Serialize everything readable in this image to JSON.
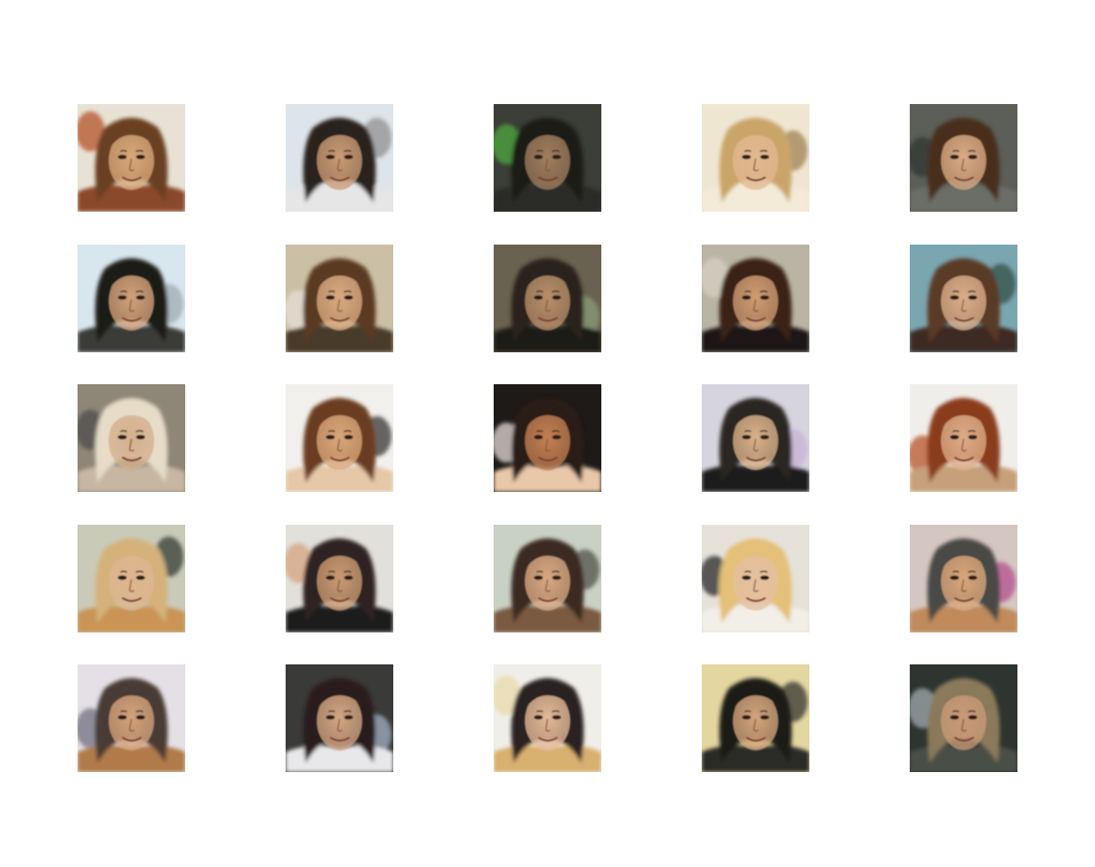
{
  "figure": {
    "rows": 5,
    "cols": 5,
    "background": "#ffffff",
    "samples": [
      {
        "bg": "#e8e2d6",
        "hair": "#6b3f22",
        "skin": "#d7a87a",
        "shirt": "#8a4a2a",
        "accent": "#b24a1e"
      },
      {
        "bg": "#dde4ea",
        "hair": "#2a201c",
        "skin": "#c99a74",
        "shirt": "#e6e6e6",
        "accent": "#8a8a8a"
      },
      {
        "bg": "#3b3e36",
        "hair": "#1f1c18",
        "skin": "#a07d5e",
        "shirt": "#2a2a26",
        "accent": "#4fae3f"
      },
      {
        "bg": "#efe6d2",
        "hair": "#caa569",
        "skin": "#e2b890",
        "shirt": "#f3ead8",
        "accent": "#9a7a4a"
      },
      {
        "bg": "#5b5f58",
        "hair": "#4a2f1e",
        "skin": "#d9ab84",
        "shirt": "#6b6e66",
        "accent": "#2e3430"
      },
      {
        "bg": "#d8e6ee",
        "hair": "#1d1a18",
        "skin": "#d2a17a",
        "shirt": "#3a3a38",
        "accent": "#9aa6ac"
      },
      {
        "bg": "#cbbfa6",
        "hair": "#5a3a22",
        "skin": "#d9aa80",
        "shirt": "#4a3a2a",
        "accent": "#e6e2da"
      },
      {
        "bg": "#6a6250",
        "hair": "#2a201a",
        "skin": "#b88f6a",
        "shirt": "#1c1a18",
        "accent": "#8aa07a"
      },
      {
        "bg": "#b9b4a4",
        "hair": "#3a2418",
        "skin": "#cf9b72",
        "shirt": "#1a1816",
        "accent": "#d8d2c6"
      },
      {
        "bg": "#7aa6b0",
        "hair": "#5a3a26",
        "skin": "#d9ad8a",
        "shirt": "#3e2a20",
        "accent": "#2e4a3e"
      },
      {
        "bg": "#8e8676",
        "hair": "#e6dcc8",
        "skin": "#d4b08e",
        "shirt": "#c7b7a2",
        "accent": "#4a4a48"
      },
      {
        "bg": "#f2f0ec",
        "hair": "#6a3e22",
        "skin": "#d9a679",
        "shirt": "#e6c8a8",
        "accent": "#2a2a2a"
      },
      {
        "bg": "#1e1a18",
        "hair": "#2a1a14",
        "skin": "#c27e52",
        "shirt": "#e8c8a8",
        "accent": "#f4e8e4"
      },
      {
        "bg": "#d6d4de",
        "hair": "#2a2624",
        "skin": "#d8b088",
        "shirt": "#1c1c1c",
        "accent": "#c8b0d6"
      },
      {
        "bg": "#f0eeea",
        "hair": "#8a3c1e",
        "skin": "#dcab86",
        "shirt": "#c6a07a",
        "accent": "#b24a1c"
      },
      {
        "bg": "#c9cab8",
        "hair": "#d4b27a",
        "skin": "#ddb690",
        "shirt": "#c99454",
        "accent": "#2a3426"
      },
      {
        "bg": "#e2e0da",
        "hair": "#2e2420",
        "skin": "#c99a72",
        "shirt": "#1a1a1c",
        "accent": "#d4a07a"
      },
      {
        "bg": "#c9d0c4",
        "hair": "#3a2a22",
        "skin": "#d8a882",
        "shirt": "#7a5a40",
        "accent": "#4a4a44"
      },
      {
        "bg": "#e6e2da",
        "hair": "#e4c078",
        "skin": "#e4c0a0",
        "shirt": "#f2efe8",
        "accent": "#1e1e1e"
      },
      {
        "bg": "#d4c6c0",
        "hair": "#4a4844",
        "skin": "#d9a67a",
        "shirt": "#c08a5a",
        "accent": "#b04a8a"
      },
      {
        "bg": "#e4e0e6",
        "hair": "#4a3a34",
        "skin": "#d3a27a",
        "shirt": "#b07a4a",
        "accent": "#6a6a78"
      },
      {
        "bg": "#3a3a38",
        "hair": "#2a1e1a",
        "skin": "#d2a682",
        "shirt": "#e8e8ea",
        "accent": "#a8b8cc"
      },
      {
        "bg": "#f0eee8",
        "hair": "#2a2420",
        "skin": "#e2b896",
        "shirt": "#d8b070",
        "accent": "#e8d8a8"
      },
      {
        "bg": "#e4d6a0",
        "hair": "#1e1a18",
        "skin": "#d2a47c",
        "shirt": "#2a2a28",
        "accent": "#2a2a26"
      },
      {
        "bg": "#2e3430",
        "hair": "#8a7a5a",
        "skin": "#c89a78",
        "shirt": "#4a5046",
        "accent": "#a6b4b8"
      }
    ]
  }
}
